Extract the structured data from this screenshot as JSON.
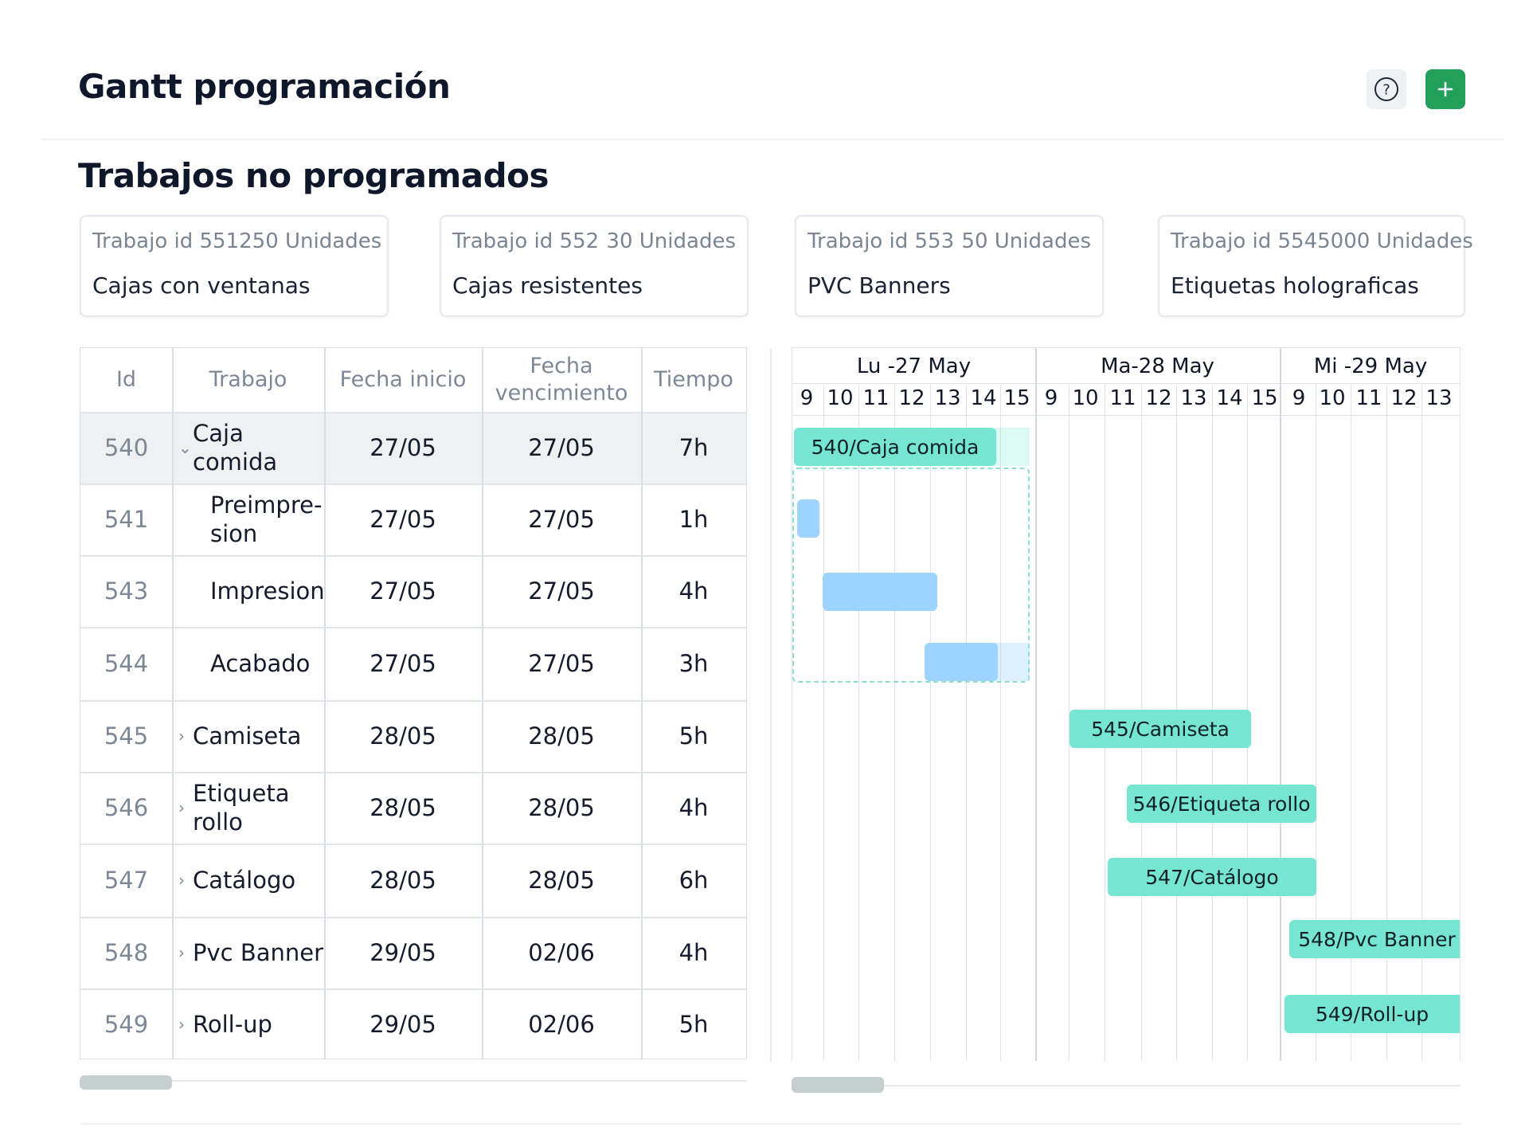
{
  "header": {
    "title": "Gantt programación",
    "help_icon": "help-circle-icon",
    "add_icon": "plus-icon",
    "add_color": "#22a05a"
  },
  "unscheduled": {
    "title": "Trabajos no programados",
    "cards": [
      {
        "id_label": "Trabajo id 551",
        "units": "250 Unidades",
        "name": "Cajas con ventanas"
      },
      {
        "id_label": "Trabajo id 552",
        "units": "30 Unidades",
        "name": "Cajas resistentes"
      },
      {
        "id_label": "Trabajo id 553",
        "units": "50 Unidades",
        "name": "PVC Banners"
      },
      {
        "id_label": "Trabajo id 554",
        "units": "5000 Unidades",
        "name": "Etiquetas holograficas"
      }
    ]
  },
  "table": {
    "columns": {
      "id": "Id",
      "job": "Trabajo",
      "start": "Fecha inicio",
      "due": "Fecha vencimiento",
      "time": "Tiempo"
    },
    "rows": [
      {
        "id": "540",
        "name": "Caja comida",
        "start": "27/05",
        "due": "27/05",
        "time": "7h",
        "kind": "parent-open",
        "selected": true
      },
      {
        "id": "541",
        "name": "Preimpre-sion",
        "start": "27/05",
        "due": "27/05",
        "time": "1h",
        "kind": "child"
      },
      {
        "id": "543",
        "name": "Impresion",
        "start": "27/05",
        "due": "27/05",
        "time": "4h",
        "kind": "child"
      },
      {
        "id": "544",
        "name": "Acabado",
        "start": "27/05",
        "due": "27/05",
        "time": "3h",
        "kind": "child"
      },
      {
        "id": "545",
        "name": "Camiseta",
        "start": "28/05",
        "due": "28/05",
        "time": "5h",
        "kind": "parent"
      },
      {
        "id": "546",
        "name": "Etiqueta rollo",
        "start": "28/05",
        "due": "28/05",
        "time": "4h",
        "kind": "parent"
      },
      {
        "id": "547",
        "name": "Catálogo",
        "start": "28/05",
        "due": "28/05",
        "time": "6h",
        "kind": "parent"
      },
      {
        "id": "548",
        "name": "Pvc Banner",
        "start": "29/05",
        "due": "02/06",
        "time": "4h",
        "kind": "parent"
      },
      {
        "id": "549",
        "name": "Roll-up",
        "start": "29/05",
        "due": "02/06",
        "time": "5h",
        "kind": "parent"
      }
    ]
  },
  "gantt": {
    "days": [
      {
        "label": "Lu -27 May",
        "hours": [
          "9",
          "10",
          "11",
          "12",
          "13",
          "14",
          "15"
        ]
      },
      {
        "label": "Ma-28 May",
        "hours": [
          "9",
          "10",
          "11",
          "12",
          "13",
          "14",
          "15"
        ]
      },
      {
        "label": "Mi -29 May",
        "hours": [
          "9",
          "10",
          "11",
          "12",
          "13"
        ]
      }
    ],
    "bars": [
      {
        "label": "540/Caja comida",
        "type": "parent"
      },
      {
        "label": "",
        "type": "child"
      },
      {
        "label": "",
        "type": "child"
      },
      {
        "label": "",
        "type": "child"
      },
      {
        "label": "545/Camiseta",
        "type": "parent"
      },
      {
        "label": "546/Etiqueta rollo",
        "type": "parent"
      },
      {
        "label": "547/Catálogo",
        "type": "parent"
      },
      {
        "label": "548/Pvc Banner",
        "type": "parent"
      },
      {
        "label": "549/Roll-up",
        "type": "parent"
      }
    ],
    "parent_color": "#76e6d2",
    "child_color": "#9dd3ff"
  }
}
